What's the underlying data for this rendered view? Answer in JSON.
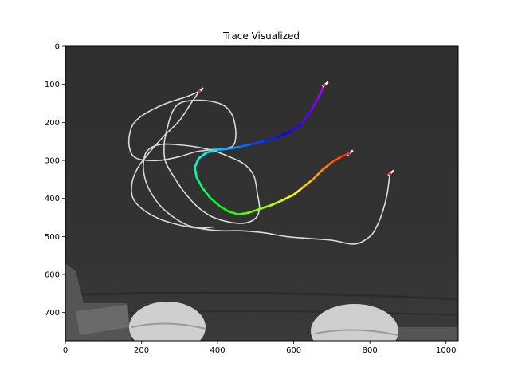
{
  "chart_data": {
    "type": "image",
    "title": "Trace Visualized",
    "xlabel": "",
    "ylabel": "",
    "xlim": [
      0,
      1032
    ],
    "ylim": [
      774,
      0
    ],
    "y_inverted": true,
    "xticks": [
      0,
      200,
      400,
      600,
      800,
      1000
    ],
    "yticks": [
      0,
      100,
      200,
      300,
      400,
      500,
      600,
      700
    ],
    "grid": false,
    "traces": [
      {
        "color": "#d9d9d9",
        "points": [
          [
            352,
            118
          ],
          [
            320,
            132
          ],
          [
            260,
            152
          ],
          [
            205,
            180
          ],
          [
            178,
            205
          ],
          [
            168,
            235
          ],
          [
            168,
            265
          ],
          [
            178,
            288
          ],
          [
            200,
            298
          ],
          [
            248,
            300
          ],
          [
            300,
            290
          ],
          [
            340,
            278
          ],
          [
            380,
            272
          ],
          [
            410,
            270
          ]
        ]
      },
      {
        "color": "#d9d9d9",
        "points": [
          [
            410,
            270
          ],
          [
            440,
            262
          ],
          [
            448,
            230
          ],
          [
            440,
            185
          ],
          [
            420,
            158
          ],
          [
            385,
            145
          ],
          [
            338,
            142
          ],
          [
            300,
            150
          ],
          [
            280,
            175
          ],
          [
            268,
            215
          ],
          [
            260,
            255
          ],
          [
            262,
            300
          ],
          [
            282,
            338
          ],
          [
            310,
            380
          ],
          [
            345,
            420
          ],
          [
            385,
            448
          ],
          [
            430,
            462
          ],
          [
            470,
            465
          ],
          [
            500,
            452
          ],
          [
            510,
            425
          ],
          [
            505,
            390
          ]
        ]
      },
      {
        "color": "#d9d9d9",
        "points": [
          [
            505,
            390
          ],
          [
            495,
            340
          ],
          [
            470,
            310
          ],
          [
            430,
            290
          ],
          [
            380,
            272
          ],
          [
            310,
            260
          ],
          [
            250,
            258
          ],
          [
            215,
            275
          ],
          [
            205,
            310
          ],
          [
            210,
            350
          ],
          [
            225,
            385
          ],
          [
            250,
            420
          ],
          [
            285,
            450
          ],
          [
            320,
            470
          ],
          [
            360,
            480
          ],
          [
            410,
            485
          ],
          [
            460,
            485
          ],
          [
            520,
            490
          ],
          [
            580,
            500
          ],
          [
            640,
            505
          ],
          [
            700,
            510
          ],
          [
            760,
            520
          ],
          [
            800,
            500
          ],
          [
            820,
            470
          ],
          [
            835,
            430
          ],
          [
            845,
            390
          ],
          [
            850,
            355
          ],
          [
            852,
            335
          ]
        ]
      },
      {
        "color": "#d9d9d9",
        "points": [
          [
            352,
            118
          ],
          [
            330,
            150
          ],
          [
            300,
            195
          ],
          [
            260,
            235
          ],
          [
            220,
            280
          ],
          [
            190,
            320
          ],
          [
            175,
            360
          ],
          [
            178,
            400
          ],
          [
            205,
            430
          ],
          [
            250,
            455
          ],
          [
            300,
            470
          ],
          [
            350,
            478
          ],
          [
            390,
            475
          ]
        ]
      }
    ],
    "colored_trace": {
      "description_colors": [
        "#ff0000",
        "#ff8800",
        "#ffff00",
        "#00ff00",
        "#00ffcc",
        "#0088ff",
        "#0000ff"
      ],
      "points": [
        [
          680,
          102
        ],
        [
          665,
          135
        ],
        [
          645,
          170
        ],
        [
          620,
          205
        ],
        [
          590,
          225
        ],
        [
          555,
          240
        ],
        [
          520,
          250
        ],
        [
          485,
          258
        ],
        [
          455,
          265
        ],
        [
          425,
          270
        ],
        [
          395,
          272
        ],
        [
          370,
          280
        ],
        [
          350,
          295
        ],
        [
          340,
          318
        ],
        [
          345,
          345
        ],
        [
          360,
          372
        ],
        [
          380,
          398
        ],
        [
          405,
          420
        ],
        [
          430,
          435
        ],
        [
          455,
          442
        ],
        [
          480,
          438
        ],
        [
          510,
          428
        ],
        [
          540,
          418
        ],
        [
          570,
          405
        ],
        [
          600,
          390
        ],
        [
          625,
          370
        ],
        [
          650,
          350
        ],
        [
          675,
          325
        ],
        [
          700,
          305
        ],
        [
          725,
          290
        ],
        [
          745,
          282
        ]
      ]
    },
    "markers": [
      [
        352,
        118
      ],
      [
        680,
        102
      ],
      [
        745,
        282
      ],
      [
        852,
        335
      ]
    ],
    "image_background": "#3a3a3a"
  }
}
